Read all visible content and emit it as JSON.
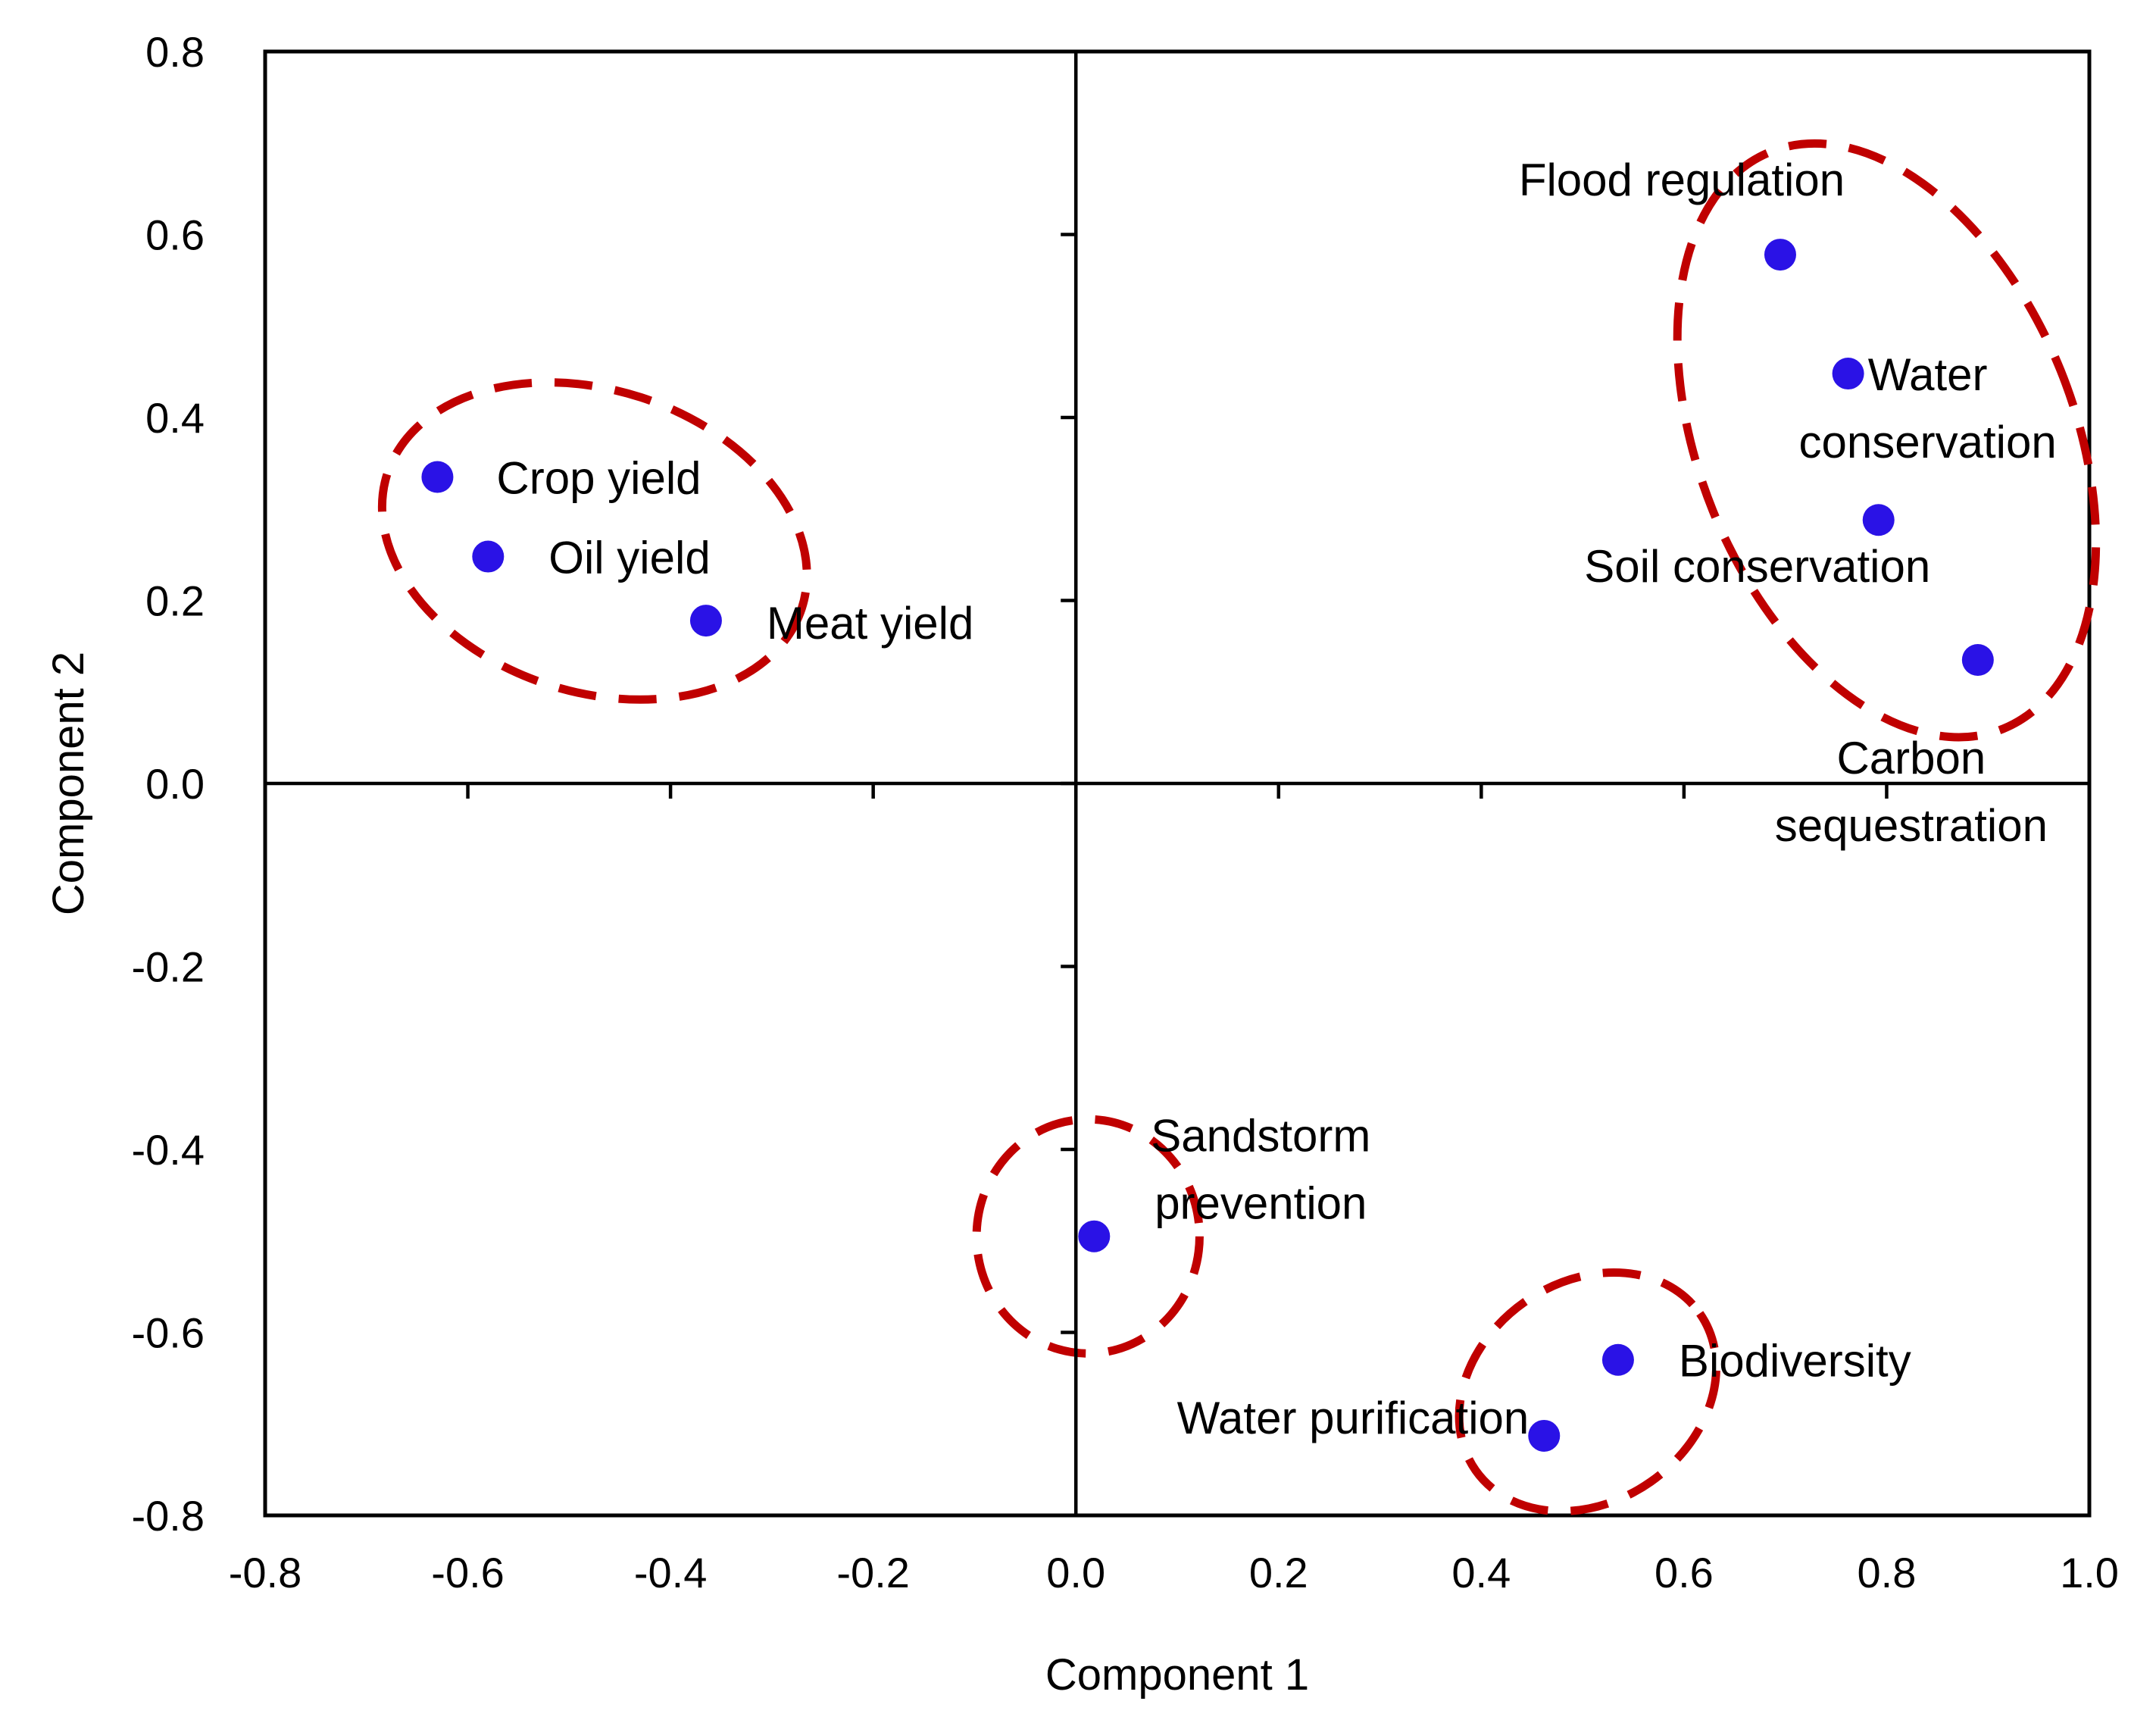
{
  "chart_data": {
    "type": "scatter",
    "title": "",
    "xlabel": "Component 1",
    "ylabel": "Component 2",
    "xlim": [
      -0.8,
      1.0
    ],
    "ylim": [
      -0.8,
      0.8
    ],
    "xticks": [
      "-0.8",
      "-0.6",
      "-0.4",
      "-0.2",
      "0.0",
      "0.2",
      "0.4",
      "0.6",
      "0.8",
      "1.0"
    ],
    "yticks": [
      "-0.8",
      "-0.6",
      "-0.4",
      "-0.2",
      "0.0",
      "0.2",
      "0.4",
      "0.6",
      "0.8"
    ],
    "grid": false,
    "colors": {
      "point": "#2a12e6",
      "cluster": "#c00000",
      "axis": "#000000"
    },
    "points": [
      {
        "name": "crop-yield",
        "label": [
          "Crop yield"
        ],
        "x": -0.63,
        "y": 0.335
      },
      {
        "name": "oil-yield",
        "label": [
          "Oil yield"
        ],
        "x": -0.58,
        "y": 0.248
      },
      {
        "name": "meat-yield",
        "label": [
          "Meat yield"
        ],
        "x": -0.365,
        "y": 0.178
      },
      {
        "name": "flood-regulation",
        "label": [
          "Flood regulation"
        ],
        "x": 0.695,
        "y": 0.578
      },
      {
        "name": "water-conservation",
        "label": [
          "Water",
          "conservation"
        ],
        "x": 0.762,
        "y": 0.448
      },
      {
        "name": "soil-conservation",
        "label": [
          "Soil conservation"
        ],
        "x": 0.792,
        "y": 0.288
      },
      {
        "name": "carbon-sequestration",
        "label": [
          "Carbon",
          "sequestration"
        ],
        "x": 0.89,
        "y": 0.135
      },
      {
        "name": "sandstorm-prevention",
        "label": [
          "Sandstorm",
          "prevention"
        ],
        "x": 0.018,
        "y": -0.495
      },
      {
        "name": "biodiversity",
        "label": [
          "Biodiversity"
        ],
        "x": 0.535,
        "y": -0.63
      },
      {
        "name": "water-purification",
        "label": [
          "Water purification"
        ],
        "x": 0.462,
        "y": -0.713
      }
    ],
    "clusters": [
      {
        "name": "provisioning-cluster",
        "members": [
          "crop-yield",
          "oil-yield",
          "meat-yield"
        ],
        "cx": -0.475,
        "cy": 0.265,
        "rx": 0.215,
        "ry": 0.165,
        "angle": 18
      },
      {
        "name": "regulating-cluster",
        "members": [
          "flood-regulation",
          "water-conservation",
          "soil-conservation",
          "carbon-sequestration"
        ],
        "cx": 0.8,
        "cy": 0.375,
        "rx": 0.185,
        "ry": 0.34,
        "angle": -22
      },
      {
        "name": "sandstorm-cluster",
        "members": [
          "sandstorm-prevention"
        ],
        "cx": 0.012,
        "cy": -0.495,
        "rx": 0.11,
        "ry": 0.128,
        "angle": 0
      },
      {
        "name": "water-biodiversity-cluster",
        "members": [
          "biodiversity",
          "water-purification"
        ],
        "cx": 0.505,
        "cy": -0.665,
        "rx": 0.135,
        "ry": 0.12,
        "angle": -35
      }
    ]
  }
}
